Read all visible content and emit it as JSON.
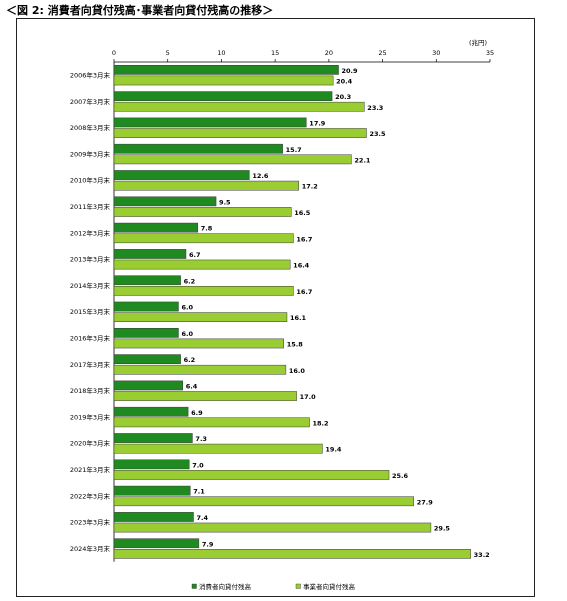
{
  "caption": "＜図 2: 消費者向貸付残高･事業者向貸付残高の推移＞",
  "chart_data": {
    "type": "bar",
    "orientation": "horizontal",
    "title": "",
    "unit_label": "(兆円)",
    "xlim": [
      0,
      35
    ],
    "xticks": [
      0,
      5,
      10,
      15,
      20,
      25,
      30,
      35
    ],
    "grid": false,
    "legend_position": "bottom",
    "categories": [
      "2006年3月末",
      "2007年3月末",
      "2008年3月末",
      "2009年3月末",
      "2010年3月末",
      "2011年3月末",
      "2012年3月末",
      "2013年3月末",
      "2014年3月末",
      "2015年3月末",
      "2016年3月末",
      "2017年3月末",
      "2018年3月末",
      "2019年3月末",
      "2020年3月末",
      "2021年3月末",
      "2022年3月末",
      "2023年3月末",
      "2024年3月末"
    ],
    "series": [
      {
        "name": "消費者向貸付残高",
        "color": "#1f8a1f",
        "values": [
          20.9,
          20.3,
          17.9,
          15.7,
          12.6,
          9.5,
          7.8,
          6.7,
          6.2,
          6.0,
          6.0,
          6.2,
          6.4,
          6.9,
          7.3,
          7.0,
          7.1,
          7.4,
          7.9
        ],
        "labels": [
          "20.9",
          "20.3",
          "17.9",
          "15.7",
          "12.6",
          "9.5",
          "7.8",
          "6.7",
          "6.2",
          "6.0",
          "6.0",
          "6.2",
          "6.4",
          "6.9",
          "7.3",
          "7.0",
          "7.1",
          "7.4",
          "7.9"
        ]
      },
      {
        "name": "事業者向貸付残高",
        "color": "#9acd32",
        "values": [
          20.4,
          23.3,
          23.5,
          22.1,
          17.2,
          16.5,
          16.7,
          16.4,
          16.7,
          16.1,
          15.8,
          16.0,
          17.0,
          18.2,
          19.4,
          25.6,
          27.9,
          29.5,
          33.2
        ],
        "labels": [
          "20.4",
          "23.3",
          "23.5",
          "22.1",
          "17.2",
          "16.5",
          "16.7",
          "16.4",
          "16.7",
          "16.1",
          "15.8",
          "16.0",
          "17.0",
          "18.2",
          "19.4",
          "25.6",
          "27.9",
          "29.5",
          "33.2"
        ]
      }
    ]
  }
}
